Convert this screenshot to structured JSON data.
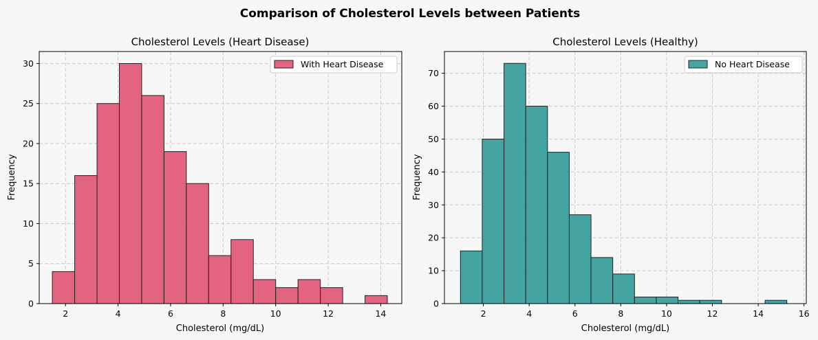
{
  "figure": {
    "title": "Comparison of Cholesterol Levels between Patients"
  },
  "chart_data": [
    {
      "type": "bar",
      "subtype": "histogram",
      "title": "Cholesterol Levels (Heart Disease)",
      "xlabel": "Cholesterol (mg/dL)",
      "ylabel": "Frequency",
      "bin_edges": [
        1.5,
        2.35,
        3.2,
        4.05,
        4.9,
        5.75,
        6.6,
        7.45,
        8.3,
        9.15,
        10.0,
        10.85,
        11.7,
        12.55,
        13.4,
        14.25
      ],
      "values": [
        4,
        16,
        25,
        30,
        26,
        19,
        15,
        6,
        8,
        3,
        2,
        3,
        2,
        0,
        1
      ],
      "xlim": [
        1.0,
        14.8
      ],
      "ylim": [
        0,
        31.5
      ],
      "xticks": [
        2,
        4,
        6,
        8,
        10,
        12,
        14
      ],
      "yticks": [
        0,
        5,
        10,
        15,
        20,
        25,
        30
      ],
      "series": [
        {
          "name": "With Heart Disease",
          "color": "#e05070"
        }
      ],
      "legend": "top-right",
      "grid": true
    },
    {
      "type": "bar",
      "subtype": "histogram",
      "title": "Cholesterol Levels (Healthy)",
      "xlabel": "Cholesterol (mg/dL)",
      "ylabel": "Frequency",
      "bin_edges": [
        1.0,
        1.95,
        2.9,
        3.85,
        4.8,
        5.75,
        6.7,
        7.65,
        8.6,
        9.55,
        10.5,
        11.45,
        12.4,
        13.35,
        14.3,
        15.25
      ],
      "values": [
        16,
        50,
        73,
        60,
        46,
        27,
        14,
        9,
        2,
        2,
        1,
        1,
        0,
        0,
        1
      ],
      "xlim": [
        0.3,
        16.1
      ],
      "ylim": [
        0,
        76.6
      ],
      "xticks": [
        2,
        4,
        6,
        8,
        10,
        12,
        14,
        16
      ],
      "yticks": [
        0,
        10,
        20,
        30,
        40,
        50,
        60,
        70
      ],
      "series": [
        {
          "name": "No Heart Disease",
          "color": "#2a9896"
        }
      ],
      "legend": "top-right",
      "grid": true
    }
  ]
}
